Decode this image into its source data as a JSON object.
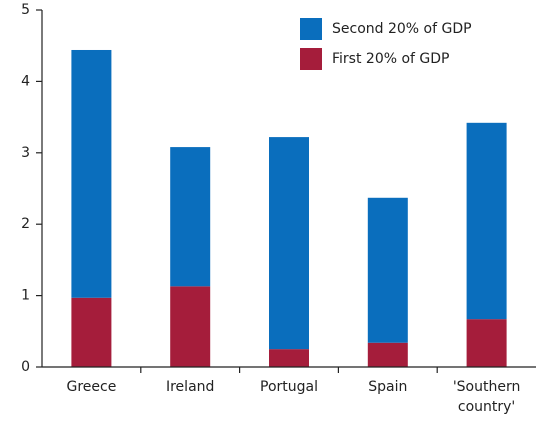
{
  "chart_data": {
    "type": "stacked_bar",
    "categories": [
      "Greece",
      "Ireland",
      "Portugal",
      "Spain",
      "'Southern country'"
    ],
    "series": [
      {
        "name": "First 20% of GDP",
        "color": "#a51d3b",
        "values": [
          0.97,
          1.13,
          0.25,
          0.34,
          0.67
        ]
      },
      {
        "name": "Second 20% of GDP",
        "color": "#0a6ebd",
        "values": [
          3.47,
          1.95,
          2.97,
          2.03,
          2.75
        ]
      }
    ],
    "ylim": [
      0,
      5
    ],
    "yticks": [
      0,
      1,
      2,
      3,
      4,
      5
    ],
    "legend": "top-right"
  }
}
